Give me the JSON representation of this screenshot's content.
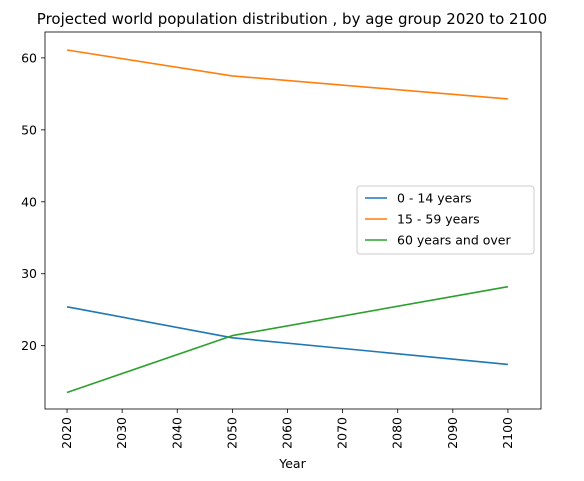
{
  "chart_data": {
    "type": "line",
    "title": "Projected world population distribution , by age group 2020 to 2100",
    "xlabel": "Year",
    "ylabel": "",
    "x": [
      2020,
      2050,
      2100
    ],
    "xticks": [
      2020,
      2030,
      2040,
      2050,
      2060,
      2070,
      2080,
      2090,
      2100
    ],
    "yticks": [
      20,
      30,
      40,
      50,
      60
    ],
    "xlim": [
      2016,
      2106
    ],
    "ylim": [
      11.2,
      63.6
    ],
    "grid": false,
    "legend_position": "center-right",
    "series": [
      {
        "name": "0 - 14 years",
        "color": "#1f77b4",
        "values": [
          25.4,
          21.1,
          17.4
        ]
      },
      {
        "name": "15 - 59 years",
        "color": "#ff7f0e",
        "values": [
          61.1,
          57.5,
          54.3
        ]
      },
      {
        "name": "60 years and over",
        "color": "#2ca02c",
        "values": [
          13.5,
          21.4,
          28.2
        ]
      }
    ]
  }
}
